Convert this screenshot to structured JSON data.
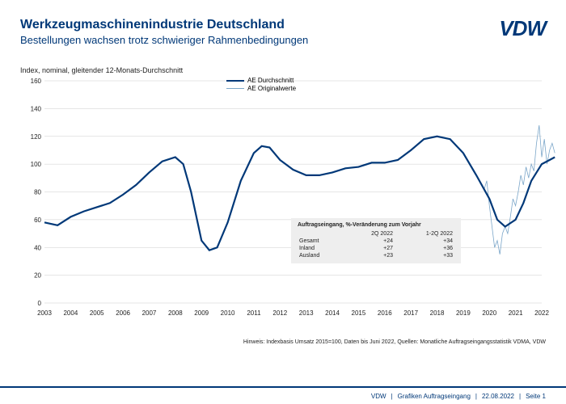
{
  "header": {
    "title": "Werkzeugmaschinenindustrie Deutschland",
    "subtitle": "Bestellungen wachsen trotz schwieriger Rahmenbedingungen",
    "logo_text": "VDW"
  },
  "chart": {
    "type": "line",
    "ylabel": "Index, nominal, gleitender 12-Monats-Durchschnitt",
    "ylim": [
      0,
      160
    ],
    "ytick_step": 20,
    "yticks": [
      0,
      20,
      40,
      60,
      80,
      100,
      120,
      140,
      160
    ],
    "x_start_year": 2003,
    "x_end_year": 2022,
    "xticks": [
      2003,
      2004,
      2005,
      2006,
      2007,
      2008,
      2009,
      2010,
      2011,
      2012,
      2013,
      2014,
      2015,
      2016,
      2017,
      2018,
      2019,
      2020,
      2021,
      2022
    ],
    "grid_color": "#cccccc",
    "background_color": "#ffffff",
    "series": {
      "avg": {
        "label": "AE Durchschnitt",
        "color": "#003878",
        "width": 2.2,
        "points": [
          [
            2003.0,
            58
          ],
          [
            2003.5,
            56
          ],
          [
            2004.0,
            62
          ],
          [
            2004.5,
            66
          ],
          [
            2005.0,
            69
          ],
          [
            2005.5,
            72
          ],
          [
            2006.0,
            78
          ],
          [
            2006.5,
            85
          ],
          [
            2007.0,
            94
          ],
          [
            2007.5,
            102
          ],
          [
            2008.0,
            105
          ],
          [
            2008.3,
            100
          ],
          [
            2008.6,
            80
          ],
          [
            2009.0,
            45
          ],
          [
            2009.3,
            38
          ],
          [
            2009.6,
            40
          ],
          [
            2010.0,
            58
          ],
          [
            2010.5,
            88
          ],
          [
            2011.0,
            108
          ],
          [
            2011.3,
            113
          ],
          [
            2011.6,
            112
          ],
          [
            2012.0,
            103
          ],
          [
            2012.5,
            96
          ],
          [
            2013.0,
            92
          ],
          [
            2013.5,
            92
          ],
          [
            2014.0,
            94
          ],
          [
            2014.5,
            97
          ],
          [
            2015.0,
            98
          ],
          [
            2015.5,
            101
          ],
          [
            2016.0,
            101
          ],
          [
            2016.5,
            103
          ],
          [
            2017.0,
            110
          ],
          [
            2017.5,
            118
          ],
          [
            2018.0,
            120
          ],
          [
            2018.5,
            118
          ],
          [
            2019.0,
            108
          ],
          [
            2019.5,
            92
          ],
          [
            2020.0,
            75
          ],
          [
            2020.3,
            60
          ],
          [
            2020.6,
            55
          ],
          [
            2021.0,
            60
          ],
          [
            2021.3,
            72
          ],
          [
            2021.6,
            88
          ],
          [
            2022.0,
            100
          ],
          [
            2022.3,
            103
          ],
          [
            2022.5,
            105
          ]
        ]
      },
      "orig": {
        "label": "AE Originalwerte",
        "color": "#7ba6c9",
        "width": 0.8,
        "points": [
          [
            2019.8,
            82
          ],
          [
            2019.9,
            88
          ],
          [
            2020.0,
            70
          ],
          [
            2020.1,
            55
          ],
          [
            2020.2,
            40
          ],
          [
            2020.3,
            45
          ],
          [
            2020.4,
            35
          ],
          [
            2020.5,
            50
          ],
          [
            2020.6,
            55
          ],
          [
            2020.7,
            50
          ],
          [
            2020.8,
            62
          ],
          [
            2020.9,
            75
          ],
          [
            2021.0,
            70
          ],
          [
            2021.1,
            80
          ],
          [
            2021.2,
            92
          ],
          [
            2021.3,
            85
          ],
          [
            2021.4,
            98
          ],
          [
            2021.5,
            90
          ],
          [
            2021.6,
            100
          ],
          [
            2021.7,
            95
          ],
          [
            2021.8,
            115
          ],
          [
            2021.9,
            128
          ],
          [
            2022.0,
            105
          ],
          [
            2022.1,
            118
          ],
          [
            2022.2,
            100
          ],
          [
            2022.3,
            110
          ],
          [
            2022.4,
            115
          ],
          [
            2022.5,
            108
          ]
        ]
      }
    },
    "legend": {
      "items": [
        "AE Durchschnitt",
        "AE Originalwerte"
      ]
    }
  },
  "infobox": {
    "title": "Auftragseingang, %-Veränderung zum Vorjahr",
    "col1": "2Q 2022",
    "col2": "1-2Q 2022",
    "rows": [
      {
        "label": "Gesamt",
        "c1": "+24",
        "c2": "+34"
      },
      {
        "label": "Inland",
        "c1": "+27",
        "c2": "+36"
      },
      {
        "label": "Ausland",
        "c1": "+23",
        "c2": "+33"
      }
    ]
  },
  "hint": "Hinweis: Indexbasis Umsatz 2015=100, Daten bis Juni 2022, Quellen: Monatliche Auftragseingangsstatistik VDMA, VDW",
  "footer": {
    "org": "VDW",
    "section": "Grafiken Auftragseingang",
    "date": "22.08.2022",
    "page": "Seite  1"
  }
}
